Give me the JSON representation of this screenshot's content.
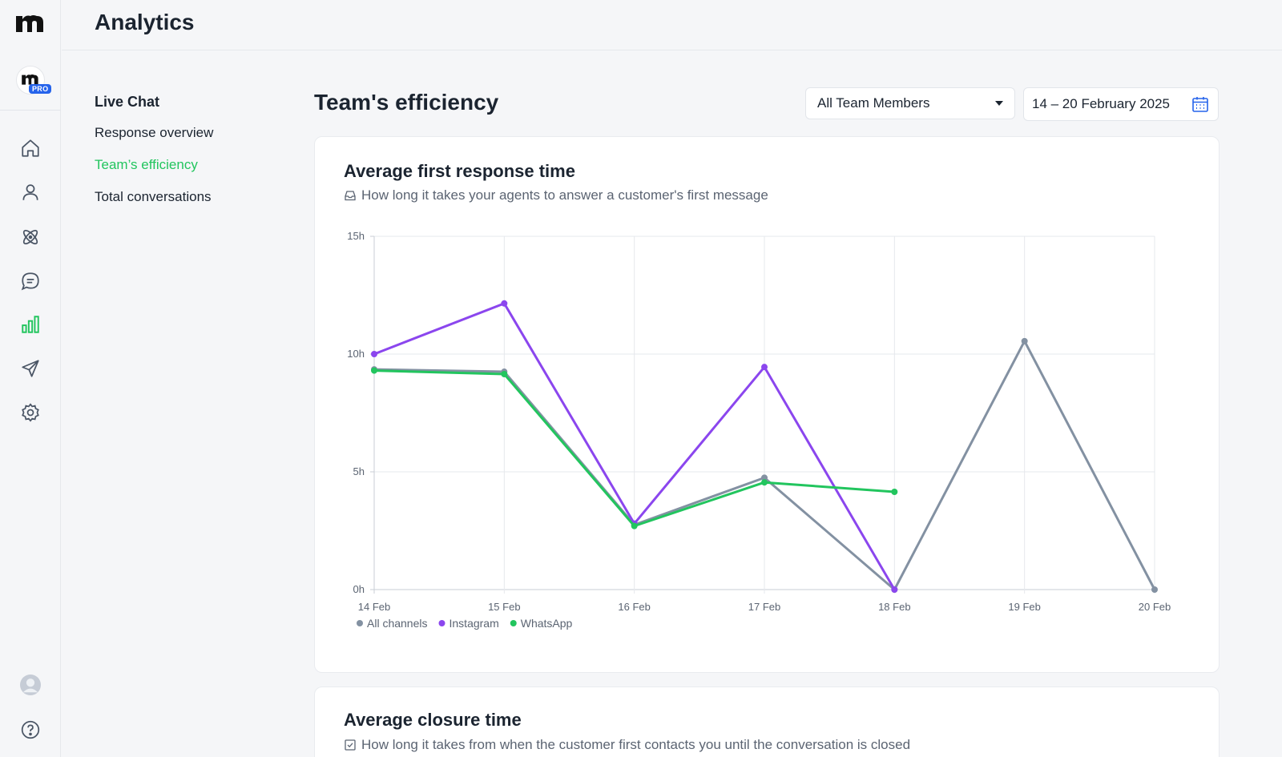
{
  "app": {
    "title": "Analytics",
    "pro_badge": "PRO"
  },
  "rail": {
    "icons": [
      "logo-icon",
      "home-icon",
      "user-icon",
      "atom-icon",
      "chat-icon",
      "bar-chart-icon",
      "send-icon",
      "gear-icon",
      "avatar-icon",
      "help-icon"
    ]
  },
  "subnav": {
    "group": "Live Chat",
    "items": [
      {
        "label": "Response overview"
      },
      {
        "label": "Team’s efficiency"
      },
      {
        "label": "Total conversations"
      }
    ]
  },
  "main": {
    "title": "Team's efficiency",
    "member_filter": "All Team Members",
    "date_range": "14 – 20 February 2025"
  },
  "cards": {
    "first_response": {
      "title": "Average first response time",
      "subtitle": "How long it takes your agents to answer a customer's first message"
    },
    "closure": {
      "title": "Average closure time",
      "subtitle": "How long it takes from when the customer first contacts you until the conversation is closed"
    }
  },
  "colors": {
    "accent": "#22c55e",
    "all": "#8391a2",
    "instagram": "#8b46ee",
    "whatsapp": "#22c55e"
  },
  "chart_data": {
    "type": "line",
    "title": "Average first response time",
    "categories": [
      "14 Feb",
      "15 Feb",
      "16 Feb",
      "17 Feb",
      "18 Feb",
      "19 Feb",
      "20 Feb"
    ],
    "ylim": [
      0,
      15
    ],
    "yticks": [
      0,
      5,
      10,
      15
    ],
    "ytick_labels": [
      "0h",
      "5h",
      "10h",
      "15h"
    ],
    "grid": true,
    "legend": "bottom-left",
    "series": [
      {
        "name": "All channels",
        "color": "#8391a2",
        "values": [
          9.35,
          9.25,
          2.75,
          4.75,
          0,
          10.55,
          0
        ]
      },
      {
        "name": "Instagram",
        "color": "#8b46ee",
        "values": [
          10,
          12.15,
          2.8,
          9.45,
          0,
          null,
          null
        ]
      },
      {
        "name": "WhatsApp",
        "color": "#22c55e",
        "values": [
          9.3,
          9.15,
          2.7,
          4.55,
          4.15,
          null,
          null
        ]
      }
    ]
  }
}
